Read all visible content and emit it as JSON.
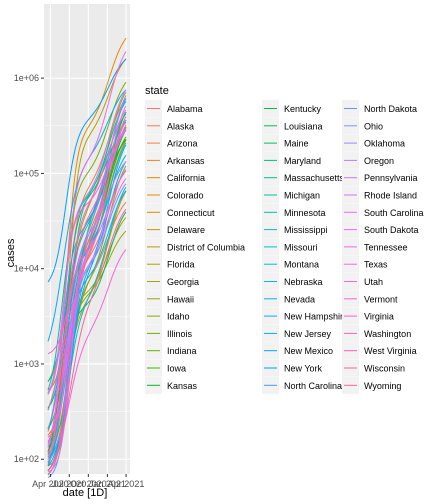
{
  "chart_data": {
    "type": "line",
    "title": "",
    "xlabel": "date [1D]",
    "ylabel": "cases",
    "y_scale": "log10",
    "ylim": [
      70,
      6000000
    ],
    "y_ticks": [
      100,
      1000,
      10000,
      100000,
      1000000
    ],
    "y_tick_labels": [
      "1e+02",
      "1e+03",
      "1e+04",
      "1e+05",
      "1e+06"
    ],
    "x_tick_labels": [
      "Apr 2020",
      "Jul 2020",
      "Oct 2020",
      "Jan 2021",
      "Apr 2021"
    ],
    "x_range": [
      "2020-03-01",
      "2021-04-20"
    ],
    "grid": true,
    "legend_title": "state",
    "legend_position": "right",
    "series": [
      {
        "name": "Alabama",
        "color": "#F8766D",
        "start": 100,
        "end": 520000
      },
      {
        "name": "Alaska",
        "color": "#F37B59",
        "start": 150,
        "end": 65000
      },
      {
        "name": "Arizona",
        "color": "#ED8141",
        "start": 60,
        "end": 840000
      },
      {
        "name": "Arkansas",
        "color": "#E7861B",
        "start": 80,
        "end": 330000
      },
      {
        "name": "California",
        "color": "#DF8C00",
        "start": 600,
        "end": 3600000
      },
      {
        "name": "Colorado",
        "color": "#D89000",
        "start": 200,
        "end": 460000
      },
      {
        "name": "Connecticut",
        "color": "#CF9400",
        "start": 150,
        "end": 310000
      },
      {
        "name": "Delaware",
        "color": "#C59900",
        "start": 90,
        "end": 95000
      },
      {
        "name": "District of Columbia",
        "color": "#BB9D00",
        "start": 100,
        "end": 45000
      },
      {
        "name": "Florida",
        "color": "#AFA100",
        "start": 500,
        "end": 2100000
      },
      {
        "name": "Georgia",
        "color": "#A3A500",
        "start": 300,
        "end": 1050000
      },
      {
        "name": "Hawaii",
        "color": "#95A900",
        "start": 70,
        "end": 31000
      },
      {
        "name": "Idaho",
        "color": "#85AD00",
        "start": 60,
        "end": 180000
      },
      {
        "name": "Illinois",
        "color": "#72B000",
        "start": 400,
        "end": 1250000
      },
      {
        "name": "Indiana",
        "color": "#5BB300",
        "start": 150,
        "end": 700000
      },
      {
        "name": "Iowa",
        "color": "#39B600",
        "start": 80,
        "end": 350000
      },
      {
        "name": "Kansas",
        "color": "#00B81F",
        "start": 70,
        "end": 300000
      },
      {
        "name": "Kentucky",
        "color": "#00BA42",
        "start": 90,
        "end": 430000
      },
      {
        "name": "Louisiana",
        "color": "#00BC59",
        "start": 300,
        "end": 450000
      },
      {
        "name": "Maine",
        "color": "#00BE6C",
        "start": 80,
        "end": 55000
      },
      {
        "name": "Maryland",
        "color": "#00BF7D",
        "start": 150,
        "end": 420000
      },
      {
        "name": "Massachusetts",
        "color": "#00C08D",
        "start": 500,
        "end": 650000
      },
      {
        "name": "Michigan",
        "color": "#00C19C",
        "start": 350,
        "end": 800000
      },
      {
        "name": "Minnesota",
        "color": "#00C1AA",
        "start": 100,
        "end": 560000
      },
      {
        "name": "Mississippi",
        "color": "#00C0B8",
        "start": 80,
        "end": 310000
      },
      {
        "name": "Missouri",
        "color": "#00BFC4",
        "start": 100,
        "end": 500000
      },
      {
        "name": "Montana",
        "color": "#00BDD0",
        "start": 60,
        "end": 105000
      },
      {
        "name": "Nebraska",
        "color": "#00BADB",
        "start": 60,
        "end": 215000
      },
      {
        "name": "Nevada",
        "color": "#00B6E5",
        "start": 100,
        "end": 310000
      },
      {
        "name": "New Hampshire",
        "color": "#00B2EE",
        "start": 70,
        "end": 90000
      },
      {
        "name": "New Jersey",
        "color": "#00ADF6",
        "start": 900,
        "end": 950000
      },
      {
        "name": "New Mexico",
        "color": "#00A7FC",
        "start": 70,
        "end": 195000
      },
      {
        "name": "New York",
        "color": "#00A0FF",
        "start": 6000,
        "end": 1950000
      },
      {
        "name": "North Carolina",
        "color": "#3E9BFF",
        "start": 150,
        "end": 950000
      },
      {
        "name": "North Dakota",
        "color": "#6A94FF",
        "start": 60,
        "end": 105000
      },
      {
        "name": "Ohio",
        "color": "#888EFF",
        "start": 200,
        "end": 1050000
      },
      {
        "name": "Oklahoma",
        "color": "#9F87FF",
        "start": 80,
        "end": 440000
      },
      {
        "name": "Oregon",
        "color": "#B281FF",
        "start": 90,
        "end": 170000
      },
      {
        "name": "Pennsylvania",
        "color": "#C27BFF",
        "start": 400,
        "end": 1100000
      },
      {
        "name": "Rhode Island",
        "color": "#D075FE",
        "start": 70,
        "end": 140000
      },
      {
        "name": "South Carolina",
        "color": "#DB72FB",
        "start": 100,
        "end": 560000
      },
      {
        "name": "South Dakota",
        "color": "#E46FF6",
        "start": 60,
        "end": 120000
      },
      {
        "name": "Tennessee",
        "color": "#ED6CF1",
        "start": 150,
        "end": 820000
      },
      {
        "name": "Texas",
        "color": "#F368EA",
        "start": 400,
        "end": 2800000
      },
      {
        "name": "Utah",
        "color": "#F866E1",
        "start": 100,
        "end": 390000
      },
      {
        "name": "Vermont",
        "color": "#FB64D8",
        "start": 60,
        "end": 21000
      },
      {
        "name": "Virginia",
        "color": "#FE62CD",
        "start": 90,
        "end": 640000
      },
      {
        "name": "Washington",
        "color": "#FF61C2",
        "start": 1200,
        "end": 380000
      },
      {
        "name": "West Virginia",
        "color": "#FF61B5",
        "start": 60,
        "end": 150000
      },
      {
        "name": "Wisconsin",
        "color": "#FF62A7",
        "start": 100,
        "end": 640000
      },
      {
        "name": "Wyoming",
        "color": "#FF6397",
        "start": 60,
        "end": 57000
      }
    ]
  }
}
